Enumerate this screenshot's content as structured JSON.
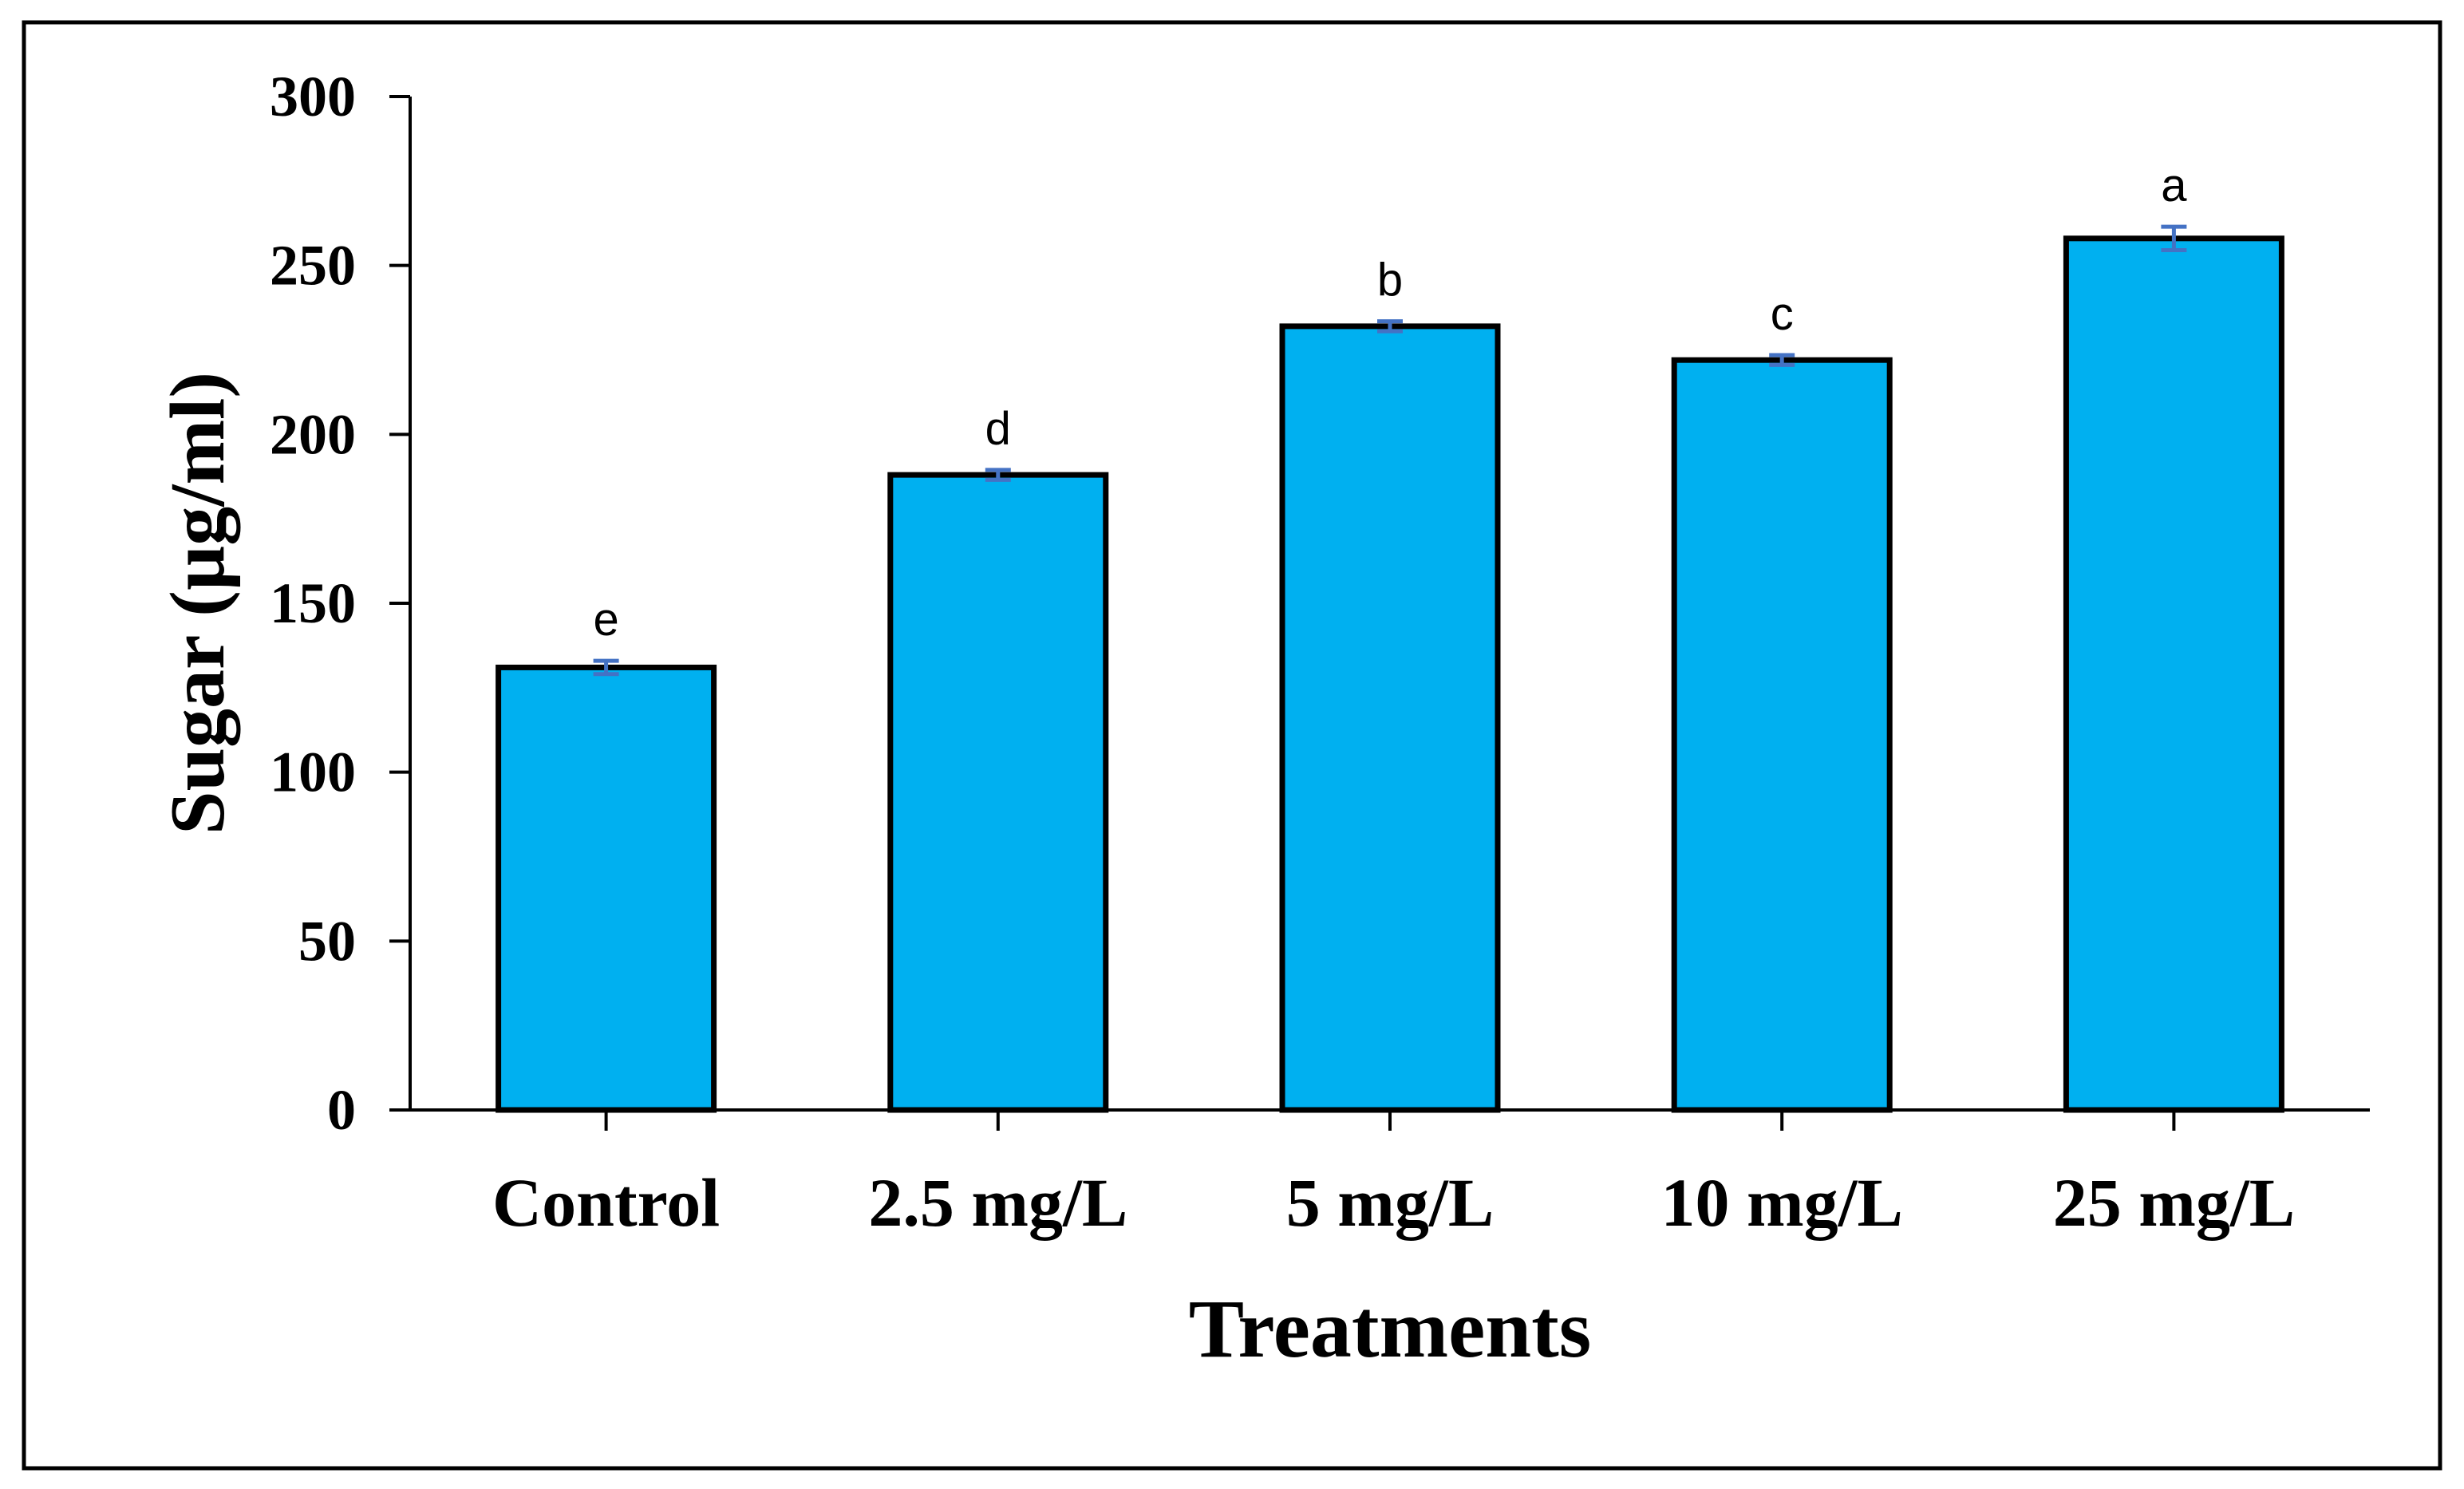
{
  "colors": {
    "bar_fill": "#00B0F0",
    "bar_stroke": "#000000",
    "error_bar": "#4472C4",
    "axis": "#000000",
    "frame": "#000000",
    "background": "#FFFFFF"
  },
  "chart_data": {
    "type": "bar",
    "title": "",
    "xlabel": "Treatments",
    "ylabel": "Sugar (µg/ml)",
    "categories": [
      "Control",
      "2.5 mg/L",
      "5 mg/L",
      "10 mg/L",
      "25 mg/L"
    ],
    "values": [
      131,
      188,
      232,
      222,
      258
    ],
    "error": [
      1.5,
      1,
      1,
      1,
      3
    ],
    "significance_letters": [
      "e",
      "d",
      "b",
      "c",
      "a"
    ],
    "ylim": [
      0,
      300
    ],
    "yticks": [
      0,
      50,
      100,
      150,
      200,
      250,
      300
    ],
    "ytick_labels": [
      "0",
      "50",
      "100",
      "150",
      "200",
      "250",
      "300"
    ],
    "grid": false,
    "legend": "none"
  }
}
